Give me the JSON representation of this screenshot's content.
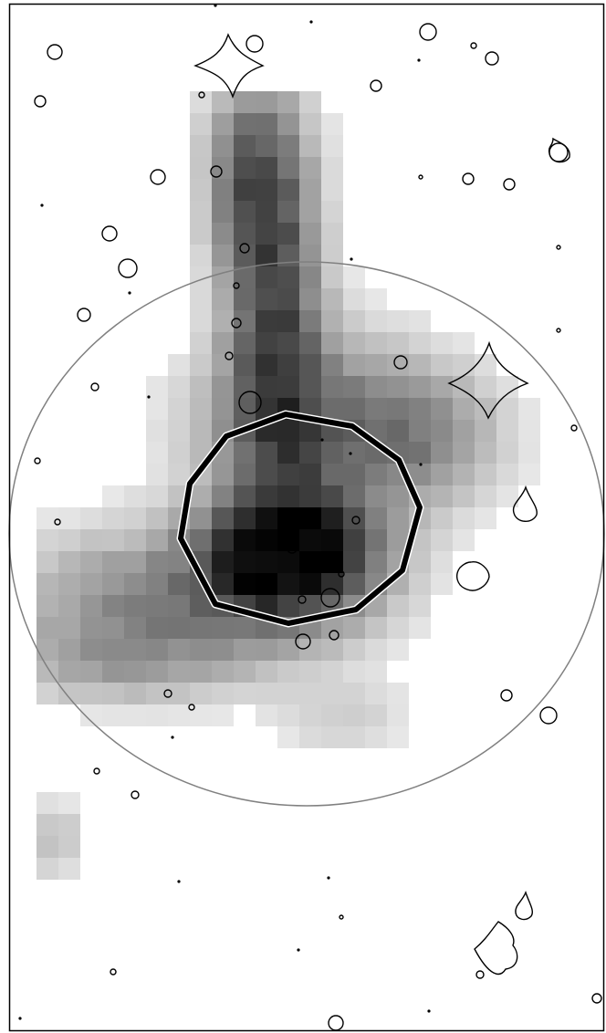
{
  "figure": {
    "kind": "greyscale intensity map with contour overlays",
    "colors": {
      "background": "#ffffff",
      "frame": "#000000",
      "ellipse_outline": "#808080",
      "aperture_outline": "#000000",
      "contour": "#000000",
      "pixel_scale_low": "#ffffff",
      "pixel_scale_high": "#000000"
    },
    "icons": [
      "star-contour-icon",
      "aperture-polygon-icon",
      "ellipse-region-icon"
    ]
  }
}
